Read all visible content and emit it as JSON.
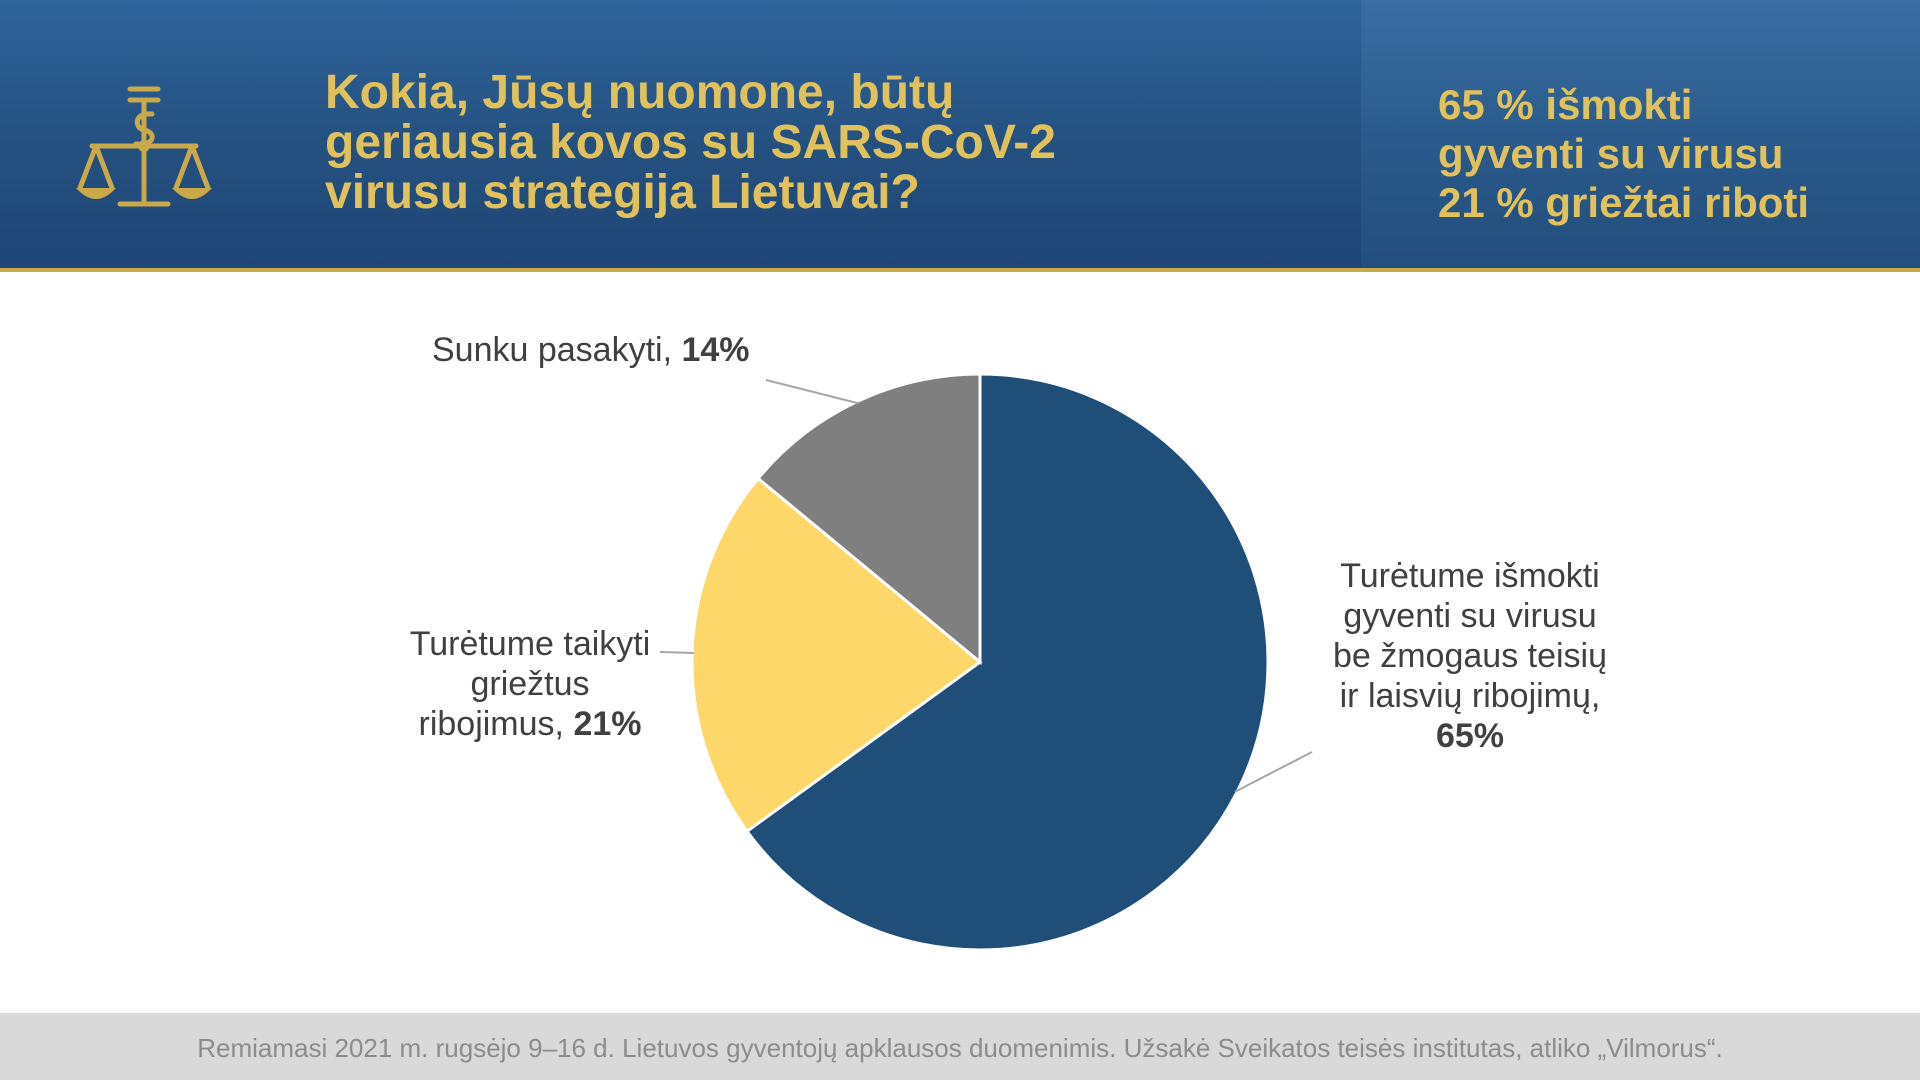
{
  "header": {
    "title_lines": [
      "Kokia, Jūsų nuomone, būtų",
      "geriausia kovos su SARS-CoV-2",
      "virusu strategija Lietuvai?"
    ],
    "summary_lines": [
      "65 % išmokti",
      "gyventi su virusu",
      "21 % griežtai riboti"
    ],
    "logo_icon": "scales-of-justice-icon",
    "colors": {
      "background": "#24507f",
      "accent": "#e1c15c"
    }
  },
  "chart_data": {
    "type": "pie",
    "slices": [
      {
        "label": "Turėtume išmokti gyventi su virusu be žmogaus teisių ir laisvių ribojimų",
        "label_lines": [
          "Turėtume išmokti",
          "gyventi su virusu",
          "be žmogaus teisių",
          "ir laisvių ribojimų,"
        ],
        "value": 65,
        "value_label": "65%",
        "color": "#1f4e79"
      },
      {
        "label": "Turėtume taikyti griežtus ribojimus",
        "label_lines": [
          "Turėtume taikyti",
          "griežtus",
          "ribojimus,"
        ],
        "value": 21,
        "value_label": "21%",
        "color": "#fdd76a"
      },
      {
        "label": "Sunku pasakyti",
        "label_lines": [
          "Sunku pasakyti,"
        ],
        "value": 14,
        "value_label": "14%",
        "color": "#7f7f7f"
      }
    ],
    "start_angle": "12 o'clock",
    "direction": "clockwise"
  },
  "footer": {
    "note": "Remiamasi 2021 m. rugsėjo 9–16 d. Lietuvos gyventojų apklausos duomenimis. Užsakė Sveikatos teisės institutas, atliko „Vilmorus“."
  }
}
